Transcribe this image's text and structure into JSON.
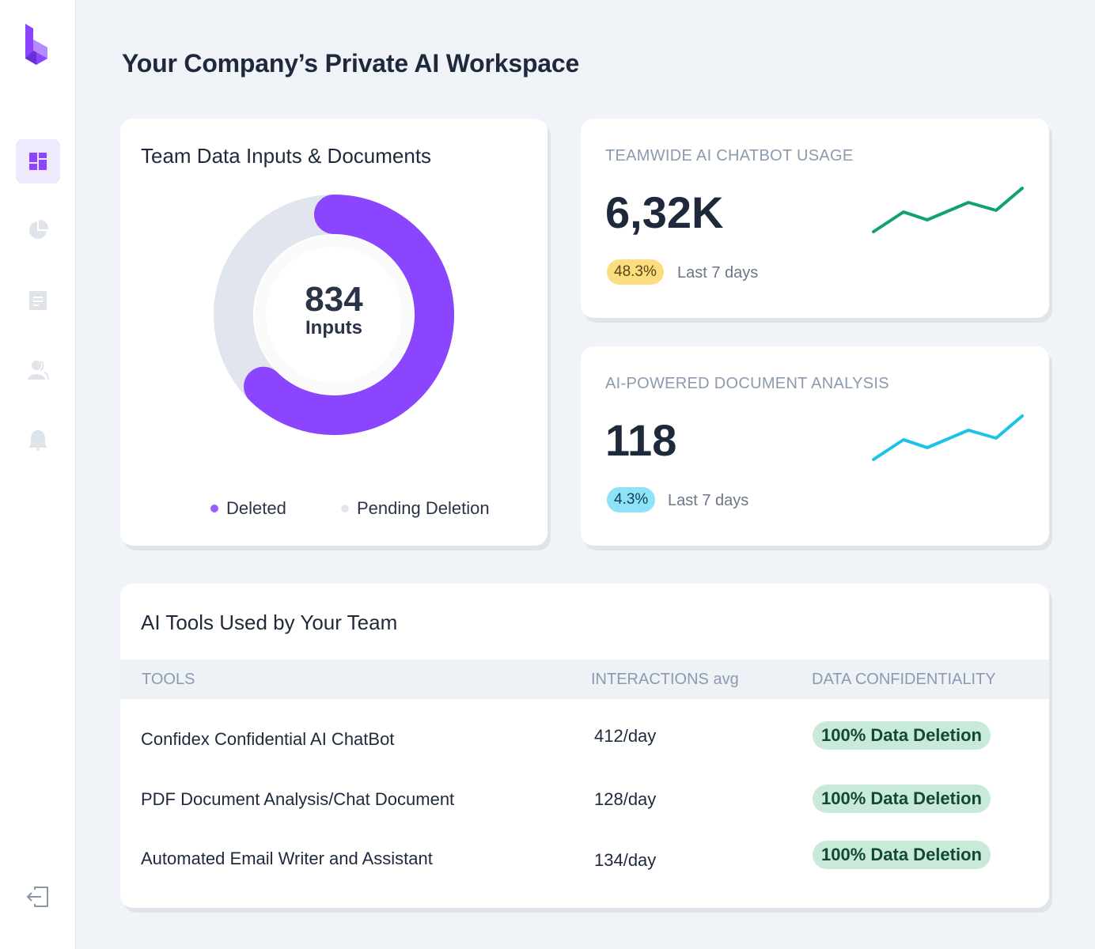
{
  "page": {
    "title": "Your Company’s Private AI Workspace"
  },
  "sidebar": {
    "items": [
      {
        "icon": "dashboard-icon",
        "active": true
      },
      {
        "icon": "pie-chart-icon",
        "active": false
      },
      {
        "icon": "document-icon",
        "active": false
      },
      {
        "icon": "users-icon",
        "active": false
      },
      {
        "icon": "bell-icon",
        "active": false
      }
    ],
    "logout_icon": "logout-icon"
  },
  "donut_card": {
    "title": "Team Data Inputs & Documents",
    "center_value": "834",
    "center_label": "Inputs",
    "legend": [
      {
        "label": "Deleted",
        "color": "#8b45ff"
      },
      {
        "label": "Pending Deletion",
        "color": "#e1e6ee"
      }
    ]
  },
  "stats": [
    {
      "label": "TEAMWIDE AI CHATBOT USAGE",
      "value": "6,32K",
      "change": "48.3%",
      "period": "Last 7 days",
      "line_color": "#12a36b"
    },
    {
      "label": "AI-POWERED DOCUMENT ANALYSIS",
      "value": "118",
      "change": "4.3%",
      "period": "Last 7 days",
      "line_color": "#1cc3e8"
    }
  ],
  "tools_table": {
    "title": "AI Tools Used by Your Team",
    "columns": [
      "TOOLS",
      "INTERACTIONS avg",
      "DATA CONFIDENTIALITY"
    ],
    "rows": [
      {
        "tool": "Confidex Confidential AI ChatBot",
        "interactions": "412/day",
        "confidentiality": "100% Data Deletion"
      },
      {
        "tool": "PDF Document Analysis/Chat Document",
        "interactions": "128/day",
        "confidentiality": "100% Data Deletion"
      },
      {
        "tool": "Automated Email Writer and Assistant",
        "interactions": "134/day",
        "confidentiality": "100% Data Deletion"
      }
    ]
  },
  "colors": {
    "accent": "#8b45ff",
    "background": "#f0f3f8"
  }
}
